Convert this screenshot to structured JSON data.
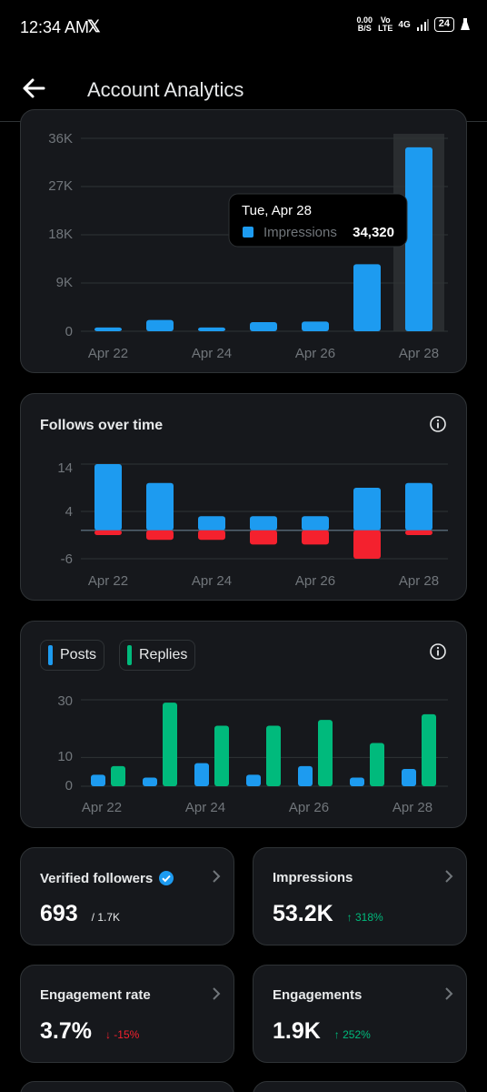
{
  "status": {
    "time": "12:34 AM",
    "x_logo": "𝕏",
    "net_speed_top": "0.00",
    "net_speed_bottom": "B/S",
    "volte_top": "Vo",
    "volte_bottom": "LTE",
    "network": "4G",
    "battery": "24"
  },
  "header": {
    "title": "Account Analytics"
  },
  "charts": {
    "impressions": {
      "y_ticks": [
        "36K",
        "27K",
        "18K",
        "9K",
        "0"
      ],
      "x_ticks": [
        "Apr 22",
        "Apr 24",
        "Apr 26",
        "Apr 28"
      ],
      "tooltip": {
        "date": "Tue, Apr 28",
        "series": "Impressions",
        "value": "34,320"
      }
    },
    "follows": {
      "title": "Follows over time",
      "y_ticks": [
        "14",
        "4",
        "-6"
      ],
      "x_ticks": [
        "Apr 22",
        "Apr 24",
        "Apr 26",
        "Apr 28"
      ]
    },
    "posts_replies": {
      "legend_posts": "Posts",
      "legend_replies": "Replies",
      "y_ticks": [
        "30",
        "10",
        "0"
      ],
      "x_ticks": [
        "Apr 22",
        "Apr 24",
        "Apr 26",
        "Apr 28"
      ]
    }
  },
  "stats": {
    "verified_followers": {
      "label": "Verified followers",
      "value": "693",
      "sub": "/ 1.7K"
    },
    "impressions": {
      "label": "Impressions",
      "value": "53.2K",
      "change": "↑ 318%"
    },
    "engagement_rate": {
      "label": "Engagement rate",
      "value": "3.7%",
      "change": "↓ -15%"
    },
    "engagements": {
      "label": "Engagements",
      "value": "1.9K",
      "change": "↑ 252%"
    }
  },
  "colors": {
    "blue": "#1d9bf0",
    "red": "#f4212e",
    "green": "#00ba7c"
  },
  "chart_data": [
    {
      "type": "bar",
      "categories": [
        "Apr 22",
        "Apr 23",
        "Apr 24",
        "Apr 25",
        "Apr 26",
        "Apr 27",
        "Apr 28"
      ],
      "series": [
        {
          "name": "Impressions",
          "values": [
            700,
            2100,
            700,
            1700,
            1800,
            12500,
            34320
          ]
        }
      ],
      "ylim": [
        0,
        36000
      ],
      "highlighted": "Apr 28"
    },
    {
      "type": "bar",
      "title": "Follows over time",
      "categories": [
        "Apr 22",
        "Apr 23",
        "Apr 24",
        "Apr 25",
        "Apr 26",
        "Apr 27",
        "Apr 28"
      ],
      "series": [
        {
          "values": [
            14,
            10,
            3,
            3,
            3,
            9,
            10
          ]
        },
        {
          "values": [
            -1,
            -2,
            -2,
            -3,
            -3,
            -6,
            -1
          ]
        }
      ],
      "ylim": [
        -6,
        14
      ]
    },
    {
      "type": "bar",
      "categories": [
        "Apr 22",
        "Apr 23",
        "Apr 24",
        "Apr 25",
        "Apr 26",
        "Apr 27",
        "Apr 28"
      ],
      "series": [
        {
          "name": "Posts",
          "values": [
            4,
            3,
            8,
            4,
            7,
            3,
            6
          ]
        },
        {
          "name": "Replies",
          "values": [
            7,
            29,
            21,
            21,
            23,
            15,
            25
          ]
        }
      ],
      "ylim": [
        0,
        32
      ]
    }
  ]
}
